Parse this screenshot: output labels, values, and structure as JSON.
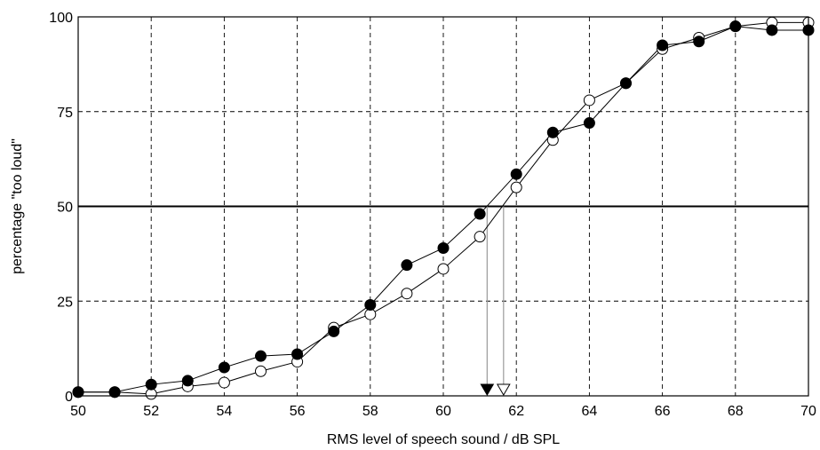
{
  "chart_data": {
    "type": "line",
    "title": "",
    "xlabel": "RMS level of speech sound / dB SPL",
    "ylabel": "percentage \"too loud\"",
    "xlim": [
      50,
      70
    ],
    "ylim": [
      0,
      100
    ],
    "x_ticks": [
      50,
      52,
      54,
      56,
      58,
      60,
      62,
      64,
      66,
      68,
      70
    ],
    "x_tick_labels": [
      "50",
      "52",
      "54",
      "56",
      "58",
      "60",
      "62",
      "64",
      "66",
      "68",
      "70"
    ],
    "y_ticks": [
      0,
      25,
      50,
      75,
      100
    ],
    "y_tick_labels": [
      "0",
      "25",
      "50",
      "75",
      "100"
    ],
    "grid": true,
    "reference_line_y": 50,
    "series": [
      {
        "marker": "filled-circle",
        "color": "#000000",
        "x": [
          50,
          51,
          52,
          53,
          54,
          55,
          56,
          57,
          58,
          59,
          60,
          61,
          62,
          63,
          64,
          65,
          66,
          67,
          68,
          69,
          70
        ],
        "y": [
          1,
          1,
          3,
          4,
          7.5,
          10.5,
          11,
          17,
          24,
          34.5,
          39,
          48,
          58.5,
          69.5,
          72,
          82.5,
          92.5,
          93.5,
          97.5,
          96.5,
          96.5
        ],
        "threshold_x": 61.2
      },
      {
        "marker": "open-circle",
        "color": "#000000",
        "x": [
          50,
          51,
          52,
          53,
          54,
          55,
          56,
          57,
          58,
          59,
          60,
          61,
          62,
          63,
          64,
          65,
          66,
          67,
          68,
          69,
          70
        ],
        "y": [
          1,
          1,
          0.5,
          2.5,
          3.5,
          6.5,
          9,
          18,
          21.5,
          27,
          33.5,
          42,
          55,
          67.5,
          78,
          82.5,
          91.5,
          94.5,
          97.5,
          98.5,
          98.5
        ],
        "threshold_x": 61.65
      }
    ]
  }
}
